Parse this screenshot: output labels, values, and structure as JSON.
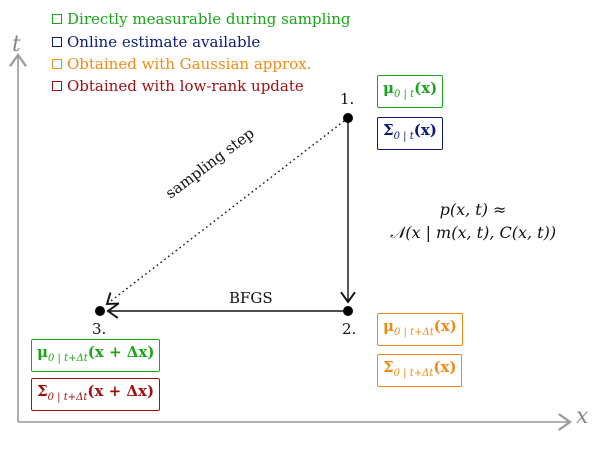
{
  "legend": [
    {
      "label": "Directly measurable during sampling",
      "color": "#1aa51a"
    },
    {
      "label": "Online estimate available",
      "color": "#0b1a7a"
    },
    {
      "label": "Obtained with Gaussian approx.",
      "color": "#ef8a17"
    },
    {
      "label": "Obtained with low-rank update",
      "color": "#a01010"
    }
  ],
  "axes": {
    "x_label": "x",
    "y_label": "t"
  },
  "points": {
    "p1": "1.",
    "p2": "2.",
    "p3": "3."
  },
  "edges": {
    "sampling_step": "sampling step",
    "bfgs": "BFGS"
  },
  "formula": {
    "line1": "p(x, t) ≈",
    "line2": "𝒩(x | m(x, t), C(x, t))"
  },
  "boxes": {
    "mu_t": {
      "main": "μ",
      "sub": "0 | t",
      "arg": "(x)"
    },
    "sigma_t": {
      "main": "Σ",
      "sub": "0 | t",
      "arg": "(x)"
    },
    "mu_tdt_p2": {
      "main": "μ",
      "sub": "0 | t+Δt",
      "arg": "(x)"
    },
    "sigma_tdt_p2": {
      "main": "Σ",
      "sub": "0 | t+Δt",
      "arg": "(x)"
    },
    "mu_tdt_p3": {
      "main": "μ",
      "sub": "0 | t+Δt",
      "arg": "(x + Δx)"
    },
    "sigma_tdt_p3": {
      "main": "Σ",
      "sub": "0 | t+Δt",
      "arg": "(x + Δx)"
    }
  }
}
